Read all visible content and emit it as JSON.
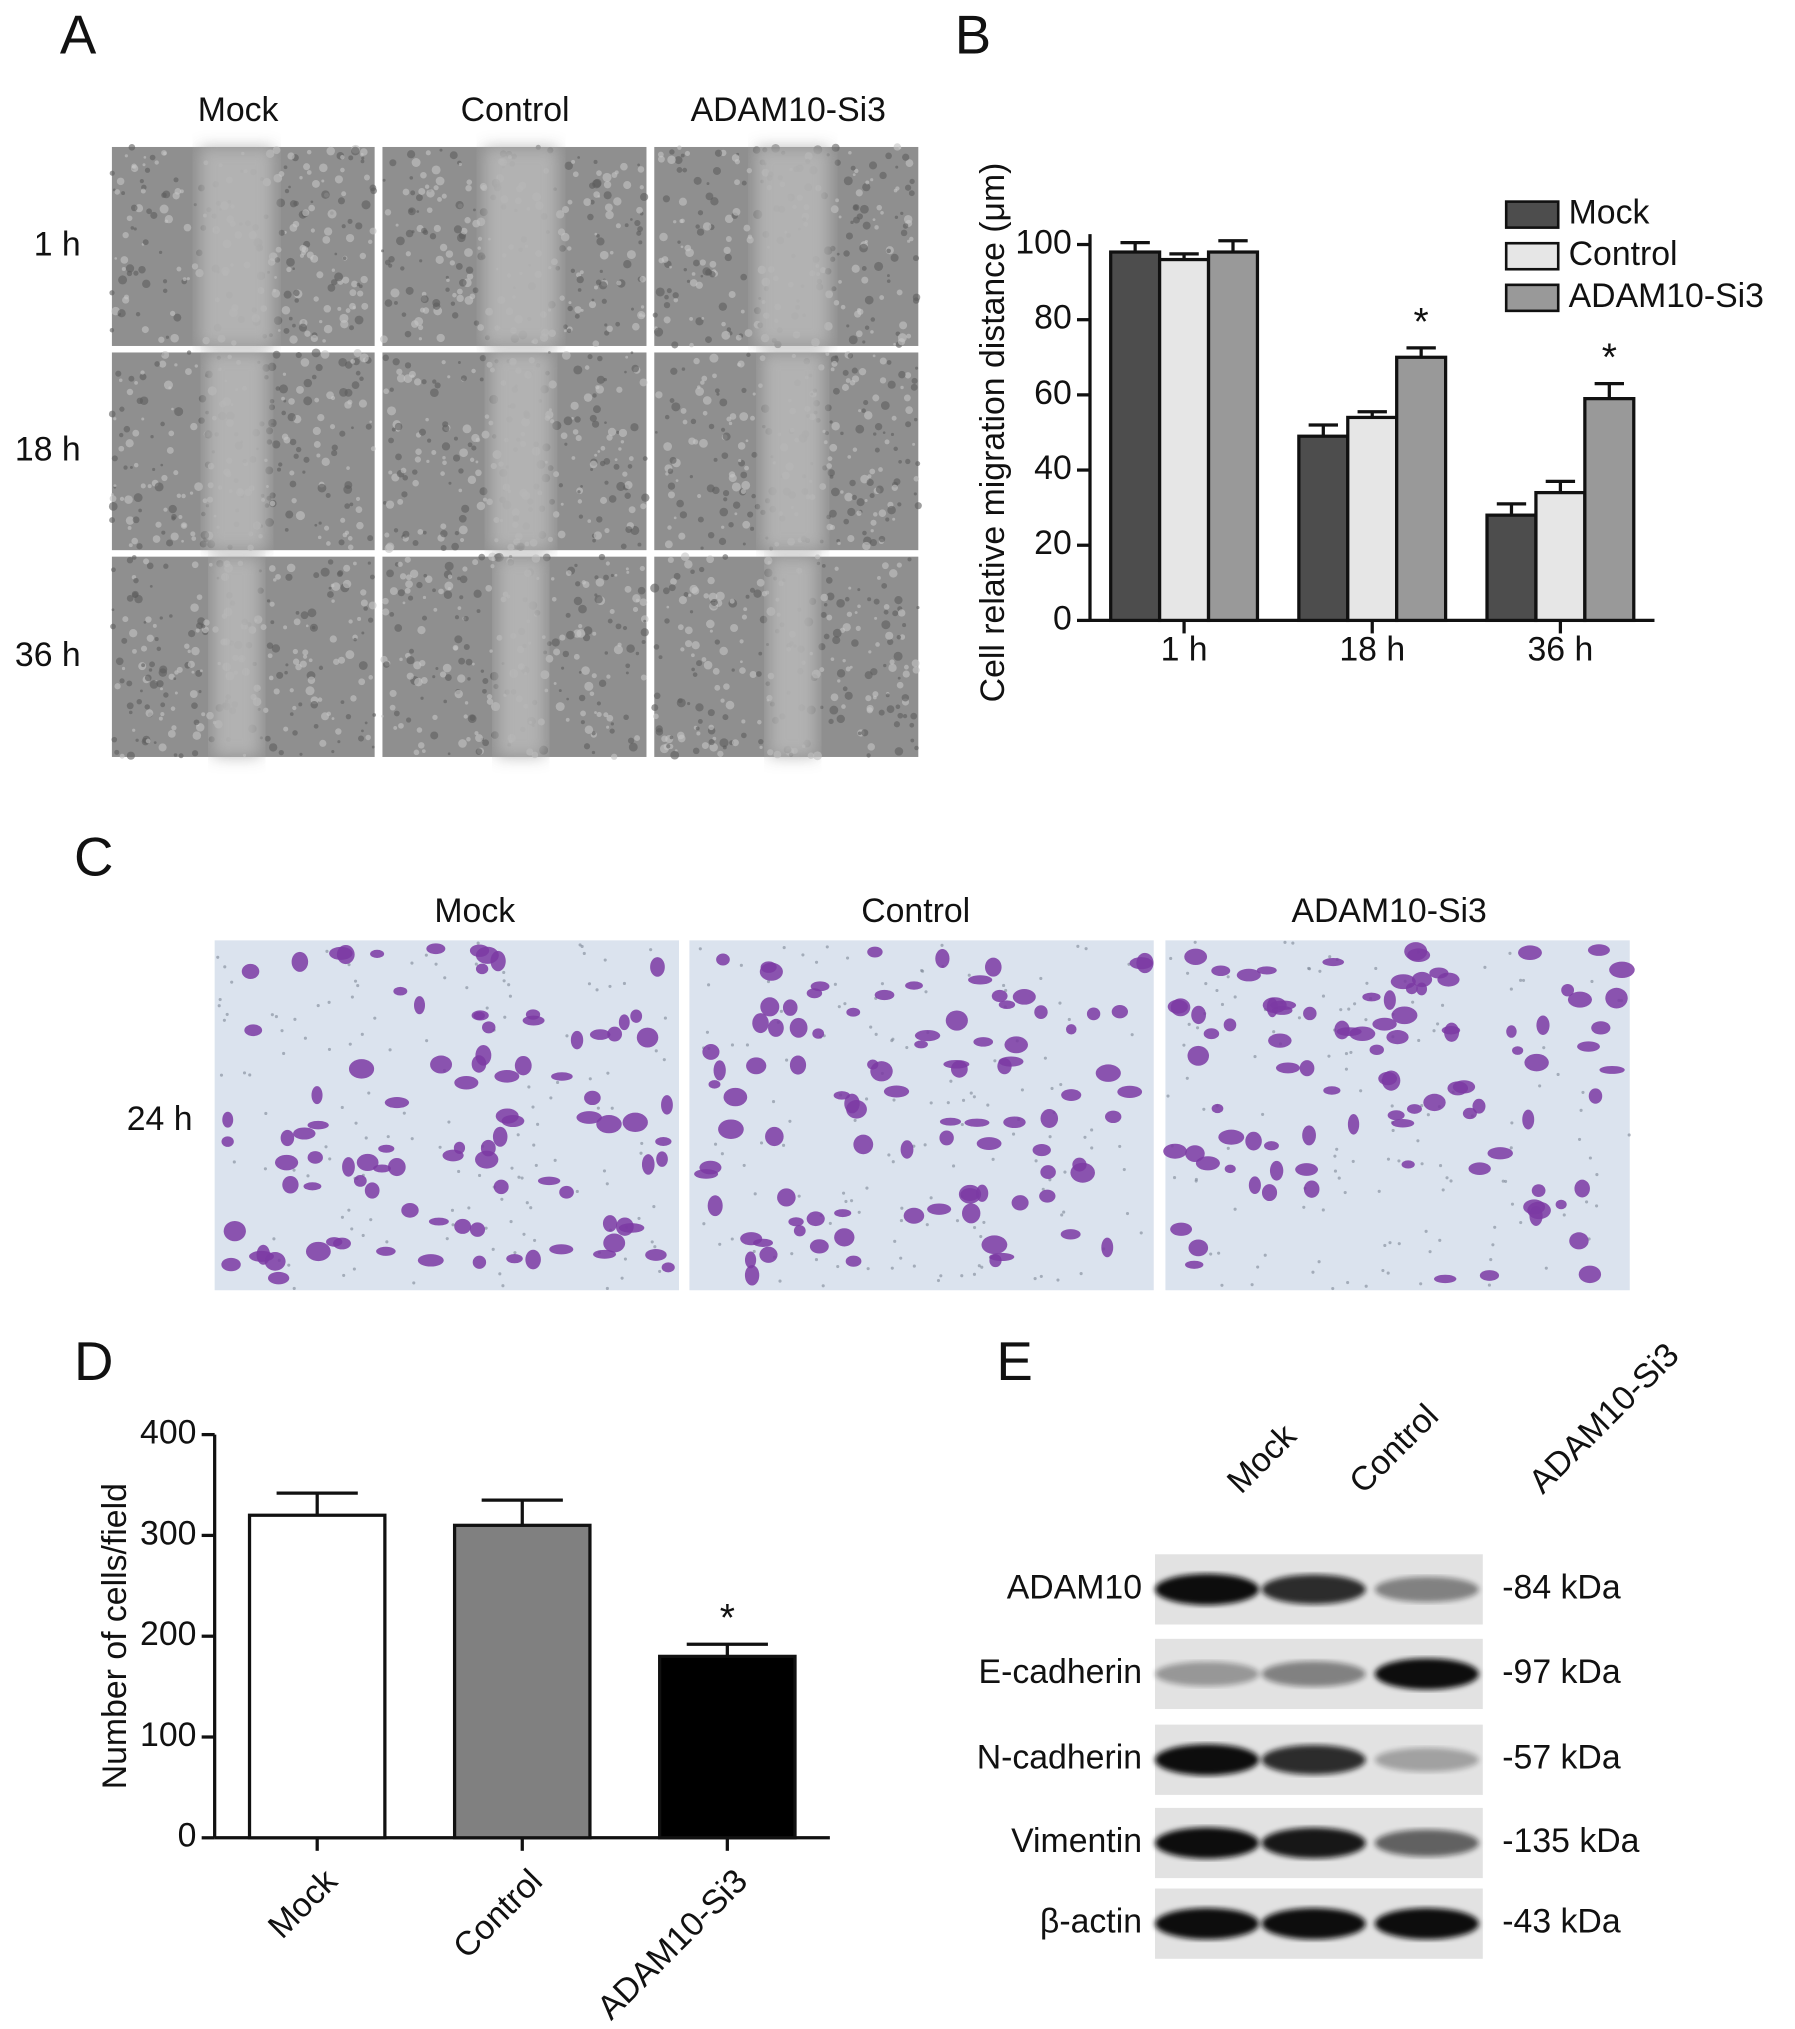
{
  "panel_labels": [
    "A",
    "B",
    "C",
    "D",
    "E"
  ],
  "panel_a": {
    "columns": [
      "Mock",
      "Control",
      "ADAM10-Si3"
    ],
    "rows": [
      "1 h",
      "18 h",
      "36 h"
    ]
  },
  "panel_c": {
    "columns": [
      "Mock",
      "Control",
      "ADAM10-Si3"
    ],
    "rows": [
      "24 h"
    ]
  },
  "panel_e": {
    "lanes": [
      "Mock",
      "Control",
      "ADAM10-Si3"
    ],
    "proteins": [
      {
        "name": "ADAM10",
        "size": "-84 kDa"
      },
      {
        "name": "E-cadherin",
        "size": "-97 kDa"
      },
      {
        "name": "N-cadherin",
        "size": "-57 kDa"
      },
      {
        "name": "Vimentin",
        "size": "-135 kDa"
      },
      {
        "name": "β-actin",
        "size": "-43 kDa"
      }
    ]
  },
  "chart_data": [
    {
      "type": "bar",
      "ylabel": "Cell relative migration distance (μm)",
      "categories": [
        "1 h",
        "18 h",
        "36 h"
      ],
      "series": [
        {
          "name": "Mock",
          "color": "#4d4d4d",
          "values": [
            98,
            49,
            28
          ],
          "errors": [
            2.5,
            3,
            3
          ],
          "significance": [
            null,
            null,
            null
          ]
        },
        {
          "name": "Control",
          "color": "#e6e6e6",
          "values": [
            96,
            54,
            34
          ],
          "errors": [
            1.5,
            1.5,
            3
          ],
          "significance": [
            null,
            null,
            null
          ]
        },
        {
          "name": "ADAM10-Si3",
          "color": "#999999",
          "values": [
            98,
            70,
            59
          ],
          "errors": [
            3,
            2.5,
            4
          ],
          "significance": [
            null,
            "*",
            "*"
          ]
        }
      ],
      "ylim": [
        0,
        100
      ],
      "yticks": [
        0,
        20,
        40,
        60,
        80,
        100
      ],
      "legend": "upper right"
    },
    {
      "type": "bar",
      "ylabel": "Number of cells/field",
      "categories": [
        "Mock",
        "Control",
        "ADAM10-Si3"
      ],
      "values": [
        320,
        310,
        180
      ],
      "errors": [
        22,
        25,
        12
      ],
      "significance": [
        null,
        null,
        "*"
      ],
      "colors": [
        "#ffffff",
        "#808080",
        "#000000"
      ],
      "ylim": [
        0,
        400
      ],
      "yticks": [
        0,
        100,
        200,
        300,
        400
      ]
    }
  ]
}
